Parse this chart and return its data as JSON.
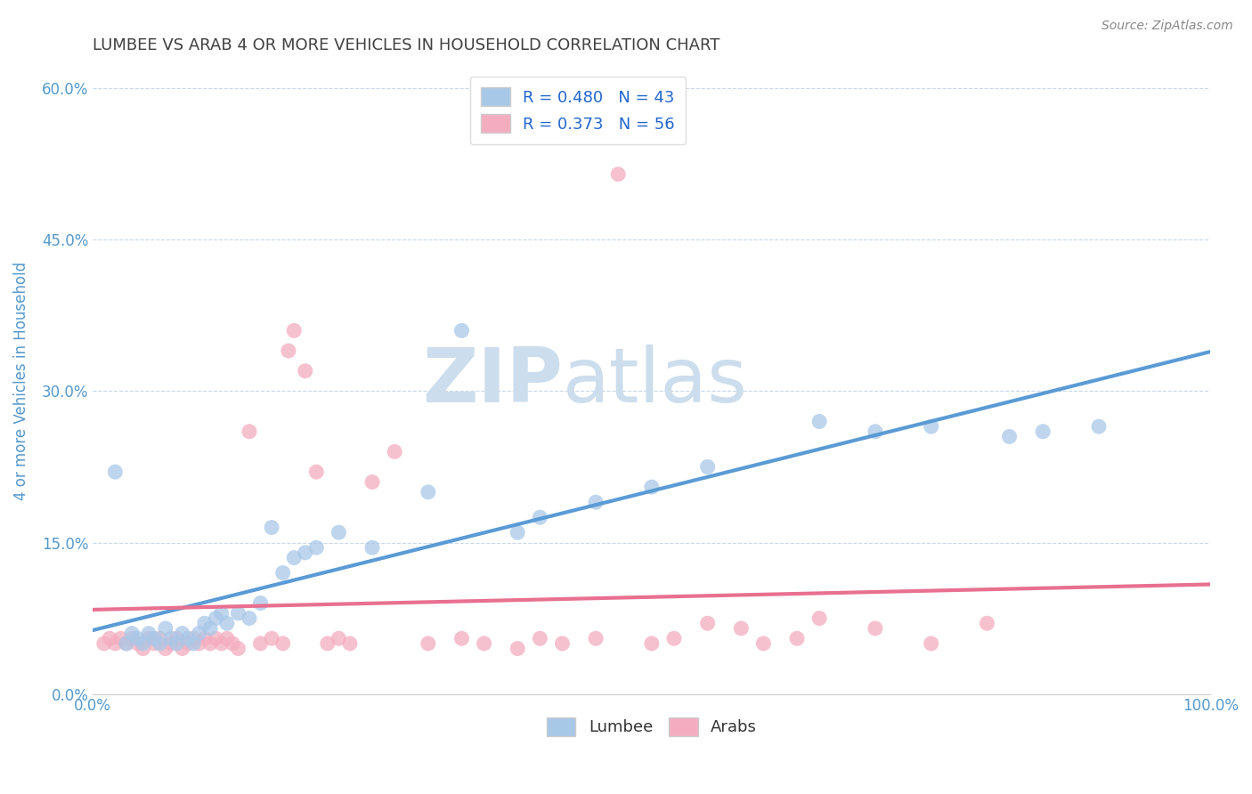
{
  "title": "LUMBEE VS ARAB 4 OR MORE VEHICLES IN HOUSEHOLD CORRELATION CHART",
  "source_text": "Source: ZipAtlas.com",
  "ylabel": "4 or more Vehicles in Household",
  "xlim": [
    0,
    100
  ],
  "ylim": [
    0,
    62
  ],
  "yticks": [
    0,
    15,
    30,
    45,
    60
  ],
  "ytick_labels": [
    "0.0%",
    "15.0%",
    "30.0%",
    "45.0%",
    "60.0%"
  ],
  "xtick_labels": [
    "0.0%",
    "",
    "",
    "",
    "",
    "",
    "",
    "",
    "",
    "",
    "100.0%"
  ],
  "lumbee_color": "#a8c8e8",
  "arab_color": "#f4adc0",
  "lumbee_line_color": "#5b9bd5",
  "arab_line_color": "#e87090",
  "legend_R_lumbee": "R = 0.480",
  "legend_N_lumbee": "N = 43",
  "legend_R_arab": "R = 0.373",
  "legend_N_arab": "N = 56",
  "legend_label_lumbee": "Lumbee",
  "legend_label_arab": "Arabs",
  "lumbee_x": [
    2.0,
    3.0,
    3.5,
    4.0,
    4.5,
    5.0,
    5.5,
    6.0,
    6.5,
    7.0,
    7.5,
    8.0,
    8.5,
    9.0,
    9.5,
    10.0,
    10.5,
    11.0,
    11.5,
    12.0,
    13.0,
    14.0,
    15.0,
    16.0,
    17.0,
    18.0,
    19.0,
    20.0,
    22.0,
    25.0,
    30.0,
    33.0,
    38.0,
    40.0,
    45.0,
    50.0,
    55.0,
    65.0,
    70.0,
    75.0,
    82.0,
    85.0,
    90.0
  ],
  "lumbee_y": [
    22.0,
    5.0,
    6.0,
    5.5,
    5.0,
    6.0,
    5.5,
    5.0,
    6.5,
    5.5,
    5.0,
    6.0,
    5.5,
    5.0,
    6.0,
    7.0,
    6.5,
    7.5,
    8.0,
    7.0,
    8.0,
    7.5,
    9.0,
    16.5,
    12.0,
    13.5,
    14.0,
    14.5,
    16.0,
    14.5,
    20.0,
    36.0,
    16.0,
    17.5,
    19.0,
    20.5,
    22.5,
    27.0,
    26.0,
    26.5,
    25.5,
    26.0,
    26.5
  ],
  "arab_x": [
    1.0,
    1.5,
    2.0,
    2.5,
    3.0,
    3.5,
    4.0,
    4.5,
    5.0,
    5.5,
    6.0,
    6.5,
    7.0,
    7.5,
    8.0,
    8.5,
    9.0,
    9.5,
    10.0,
    10.5,
    11.0,
    11.5,
    12.0,
    12.5,
    13.0,
    14.0,
    15.0,
    16.0,
    17.0,
    17.5,
    18.0,
    19.0,
    20.0,
    21.0,
    22.0,
    23.0,
    25.0,
    27.0,
    30.0,
    33.0,
    35.0,
    38.0,
    40.0,
    42.0,
    45.0,
    47.0,
    50.0,
    52.0,
    55.0,
    58.0,
    60.0,
    63.0,
    65.0,
    70.0,
    75.0,
    80.0
  ],
  "arab_y": [
    5.0,
    5.5,
    5.0,
    5.5,
    5.0,
    5.5,
    5.0,
    4.5,
    5.5,
    5.0,
    5.5,
    4.5,
    5.0,
    5.5,
    4.5,
    5.0,
    5.5,
    5.0,
    5.5,
    5.0,
    5.5,
    5.0,
    5.5,
    5.0,
    4.5,
    26.0,
    5.0,
    5.5,
    5.0,
    34.0,
    36.0,
    32.0,
    22.0,
    5.0,
    5.5,
    5.0,
    21.0,
    24.0,
    5.0,
    5.5,
    5.0,
    4.5,
    5.5,
    5.0,
    5.5,
    51.5,
    5.0,
    5.5,
    7.0,
    6.5,
    5.0,
    5.5,
    7.5,
    6.5,
    5.0,
    7.0
  ],
  "background_color": "#ffffff",
  "grid_color": "#c8d8e8",
  "title_color": "#404040",
  "axis_label_color": "#5599cc",
  "watermark_text": "ZIP",
  "watermark_text2": "atlas",
  "watermark_color": "#ccdded",
  "watermark_fontsize": 62
}
